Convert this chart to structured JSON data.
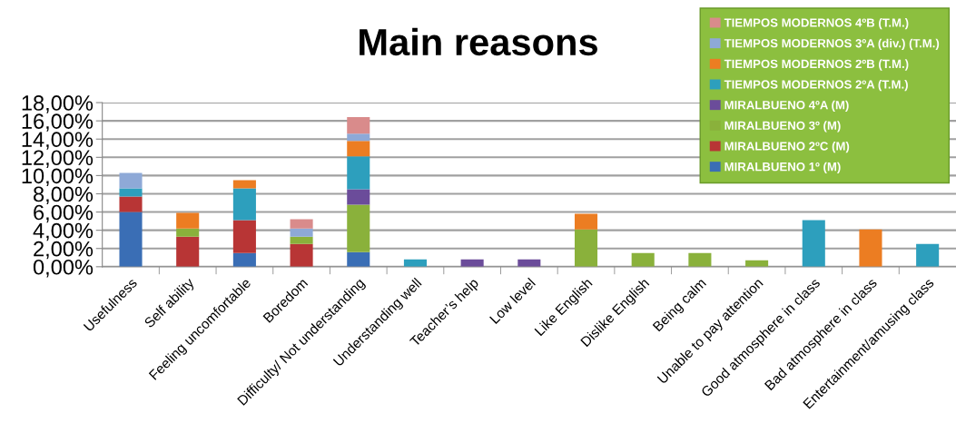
{
  "chart_data": {
    "type": "bar",
    "title": "Main reasons",
    "stacked": true,
    "grid": "y",
    "legend": "top right",
    "categories": [
      "Usefulness",
      "Self ability",
      "Feeling uncomfortable",
      "Boredom",
      "Difficulty/ Not understanding",
      "Understanding well",
      "Teacher’s help",
      "Low level",
      "Like English",
      "Dislike English",
      "Being calm",
      "Unable to pay attention",
      "Good atmosphere in class",
      "Bad atmosphere in class",
      "Entertainment/amusing class"
    ],
    "series": [
      {
        "name": "MIRALBUENO 1º (M)",
        "color": "#3a6eb5",
        "values": [
          6.0,
          0,
          1.5,
          0,
          1.6,
          0,
          0,
          0,
          0,
          0,
          0,
          0,
          0,
          0,
          0
        ]
      },
      {
        "name": "MIRALBUENO 2ºC (M)",
        "color": "#b83535",
        "values": [
          1.7,
          3.3,
          3.6,
          2.5,
          0,
          0,
          0,
          0,
          0,
          0,
          0,
          0,
          0,
          0,
          0
        ]
      },
      {
        "name": "MIRALBUENO 3º (M)",
        "color": "#8ab13b",
        "values": [
          0,
          0.9,
          0,
          0.8,
          5.2,
          0,
          0,
          0,
          4.1,
          1.5,
          1.5,
          0.7,
          0,
          0,
          0
        ]
      },
      {
        "name": "MIRALBUENO 4ºA (M)",
        "color": "#6b4c9a",
        "values": [
          0,
          0,
          0,
          0,
          1.7,
          0,
          0.8,
          0.8,
          0,
          0,
          0,
          0,
          0,
          0,
          0
        ]
      },
      {
        "name": "TIEMPOS MODERNOS 2ºA (T.M.)",
        "color": "#2d9fbd",
        "values": [
          0.9,
          0,
          3.5,
          0,
          3.6,
          0.8,
          0,
          0,
          0,
          0,
          0,
          0,
          5.1,
          0,
          2.5
        ]
      },
      {
        "name": "TIEMPOS MODERNOS 2ºB (T.M.)",
        "color": "#ec7d22",
        "values": [
          0,
          1.7,
          0.9,
          0,
          1.7,
          0,
          0,
          0,
          1.7,
          0,
          0,
          0,
          0,
          4.1,
          0
        ]
      },
      {
        "name": "TIEMPOS MODERNOS 3ºA (div.) (T.M.)",
        "color": "#8ea9d7",
        "values": [
          1.7,
          0,
          0,
          0.9,
          0.8,
          0,
          0,
          0,
          0,
          0,
          0,
          0,
          0,
          0,
          0
        ]
      },
      {
        "name": "TIEMPOS MODERNOS 4ºB (T.M.)",
        "color": "#d98b8b",
        "values": [
          0,
          0,
          0,
          1.0,
          1.8,
          0,
          0,
          0,
          0,
          0,
          0,
          0,
          0,
          0,
          0
        ]
      }
    ],
    "ylim": [
      0,
      18
    ],
    "yticks": [
      {
        "value": 0,
        "label": "0,00%"
      },
      {
        "value": 2,
        "label": "2,00%"
      },
      {
        "value": 4,
        "label": "4,00%"
      },
      {
        "value": 6,
        "label": "6,00%"
      },
      {
        "value": 8,
        "label": "8,00%"
      },
      {
        "value": 10,
        "label": "10,00%"
      },
      {
        "value": 12,
        "label": "12,00%"
      },
      {
        "value": 14,
        "label": "14,00%"
      },
      {
        "value": 16,
        "label": "16,00%"
      },
      {
        "value": 18,
        "label": "18,00%"
      }
    ]
  }
}
